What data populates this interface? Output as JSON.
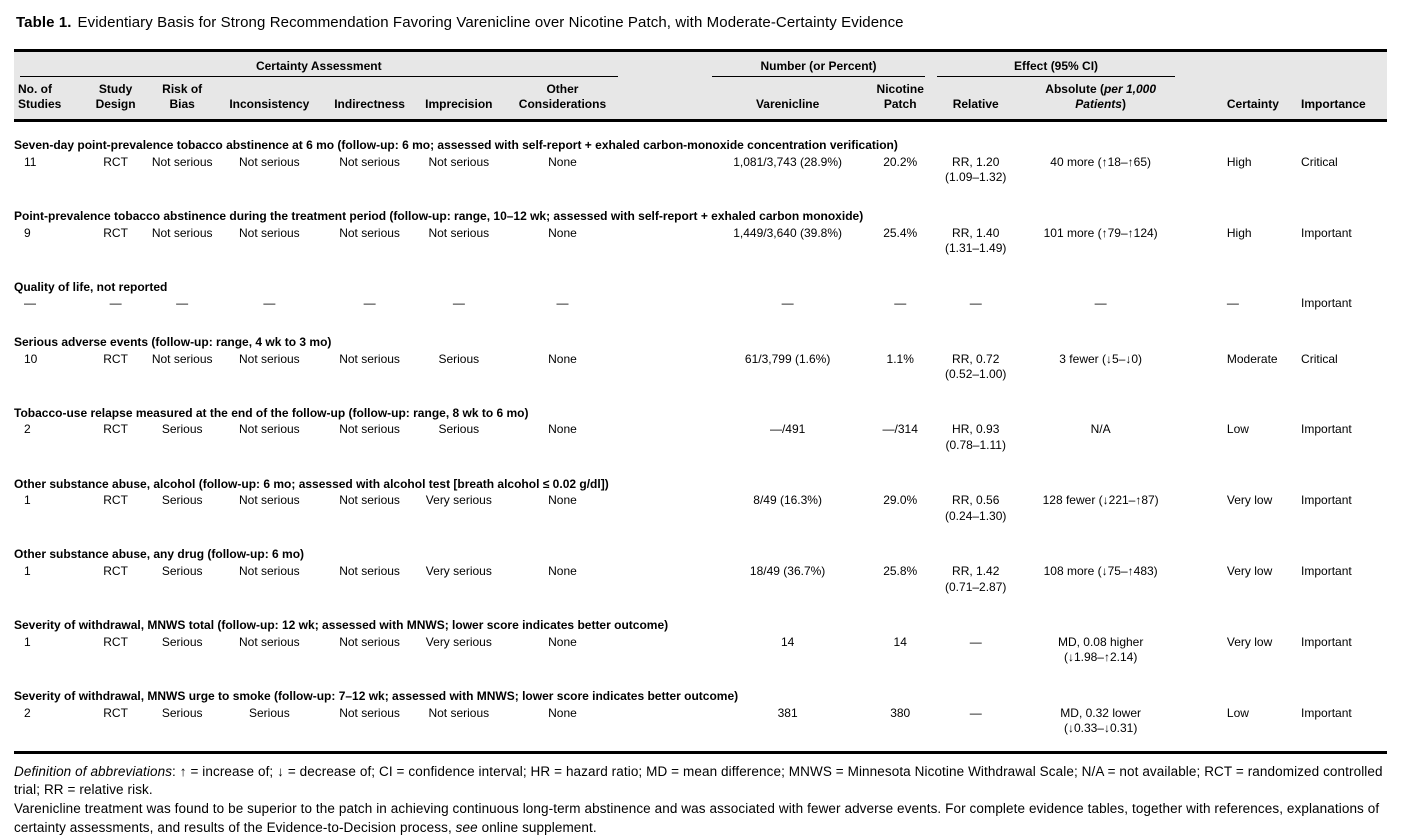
{
  "title": {
    "label": "Table 1.",
    "text": "Evidentiary Basis for Strong Recommendation Favoring Varenicline over Nicotine Patch, with Moderate-Certainty Evidence"
  },
  "table": {
    "groups": {
      "certainty": "Certainty Assessment",
      "number": "Number (or Percent)",
      "effect": "Effect (95% CI)"
    },
    "columns": {
      "no_studies": "No. of\nStudies",
      "study_design": "Study\nDesign",
      "risk_of_bias": "Risk of\nBias",
      "inconsistency": "Inconsistency",
      "indirectness": "Indirectness",
      "imprecision": "Imprecision",
      "other_considerations": "Other\nConsiderations",
      "varenicline": "Varenicline",
      "nicotine_patch": "Nicotine\nPatch",
      "relative": "Relative",
      "absolute_prefix": "Absolute (",
      "absolute_italic": "per 1,000 Patients",
      "absolute_suffix": ")",
      "certainty": "Certainty",
      "importance": "Importance"
    },
    "sections": [
      {
        "heading": "Seven-day point-prevalence tobacco abstinence at 6 mo (follow-up: 6 mo; assessed with self-report + exhaled carbon-monoxide concentration verification)",
        "cells": [
          "11",
          "RCT",
          "Not serious",
          "Not serious",
          "Not serious",
          "Not serious",
          "None",
          "1,081/3,743 (28.9%)",
          "20.2%",
          "RR, 1.20\n(1.09–1.32)",
          "40 more (↑18–↑65)",
          "High",
          "Critical"
        ]
      },
      {
        "heading": "Point-prevalence tobacco abstinence during the treatment period (follow-up: range, 10–12 wk; assessed with self-report + exhaled carbon monoxide)",
        "cells": [
          "9",
          "RCT",
          "Not serious",
          "Not serious",
          "Not serious",
          "Not serious",
          "None",
          "1,449/3,640 (39.8%)",
          "25.4%",
          "RR, 1.40\n(1.31–1.49)",
          "101 more (↑79–↑124)",
          "High",
          "Important"
        ]
      },
      {
        "heading": "Quality of life, not reported",
        "cells": [
          "—",
          "—",
          "—",
          "—",
          "—",
          "—",
          "—",
          "—",
          "—",
          "—",
          "—",
          "—",
          "Important"
        ]
      },
      {
        "heading": "Serious adverse events (follow-up: range, 4 wk to 3 mo)",
        "cells": [
          "10",
          "RCT",
          "Not serious",
          "Not serious",
          "Not serious",
          "Serious",
          "None",
          "61/3,799 (1.6%)",
          "1.1%",
          "RR, 0.72\n(0.52–1.00)",
          "3 fewer (↓5–↓0)",
          "Moderate",
          "Critical"
        ]
      },
      {
        "heading": "Tobacco-use relapse measured at the end of the follow-up (follow-up: range, 8 wk to 6 mo)",
        "cells": [
          "2",
          "RCT",
          "Serious",
          "Not serious",
          "Not serious",
          "Serious",
          "None",
          "—/491",
          "—/314",
          "HR, 0.93\n(0.78–1.11)",
          "N/A",
          "Low",
          "Important"
        ]
      },
      {
        "heading": "Other substance abuse, alcohol (follow-up: 6 mo; assessed with alcohol test [breath alcohol ≤ 0.02 g/dl])",
        "cells": [
          "1",
          "RCT",
          "Serious",
          "Not serious",
          "Not serious",
          "Very serious",
          "None",
          "8/49 (16.3%)",
          "29.0%",
          "RR, 0.56\n(0.24–1.30)",
          "128 fewer (↓221–↑87)",
          "Very low",
          "Important"
        ]
      },
      {
        "heading": "Other substance abuse, any drug (follow-up: 6 mo)",
        "cells": [
          "1",
          "RCT",
          "Serious",
          "Not serious",
          "Not serious",
          "Very serious",
          "None",
          "18/49 (36.7%)",
          "25.8%",
          "RR, 1.42\n(0.71–2.87)",
          "108 more (↓75–↑483)",
          "Very low",
          "Important"
        ]
      },
      {
        "heading": "Severity of withdrawal, MNWS total (follow-up: 12 wk; assessed with MNWS; lower score indicates better outcome)",
        "cells": [
          "1",
          "RCT",
          "Serious",
          "Not serious",
          "Not serious",
          "Very serious",
          "None",
          "14",
          "14",
          "—",
          "MD, 0.08 higher\n(↓1.98–↑2.14)",
          "Very low",
          "Important"
        ]
      },
      {
        "heading": "Severity of withdrawal, MNWS urge to smoke (follow-up: 7–12 wk; assessed with MNWS; lower score indicates better outcome)",
        "cells": [
          "2",
          "RCT",
          "Serious",
          "Serious",
          "Not serious",
          "Not serious",
          "None",
          "381",
          "380",
          "—",
          "MD, 0.32 lower\n(↓0.33–↓0.31)",
          "Low",
          "Important"
        ]
      }
    ]
  },
  "footnotes": {
    "abbrev_label": "Definition of abbreviations",
    "abbrev_text": ": ↑ = increase of; ↓ = decrease of; CI = confidence interval; HR = hazard ratio; MD = mean difference; MNWS = Minnesota Nicotine Withdrawal Scale; N/A = not available; RCT = randomized controlled trial; RR = relative risk.",
    "note_part1": "Varenicline treatment was found to be superior to the patch in achieving continuous long-term abstinence and was associated with fewer adverse events. For complete evidence tables, together with references, explanations of certainty assessments, and results of the Evidence-to-Decision process, ",
    "note_italic": "see",
    "note_part2": " online supplement."
  }
}
